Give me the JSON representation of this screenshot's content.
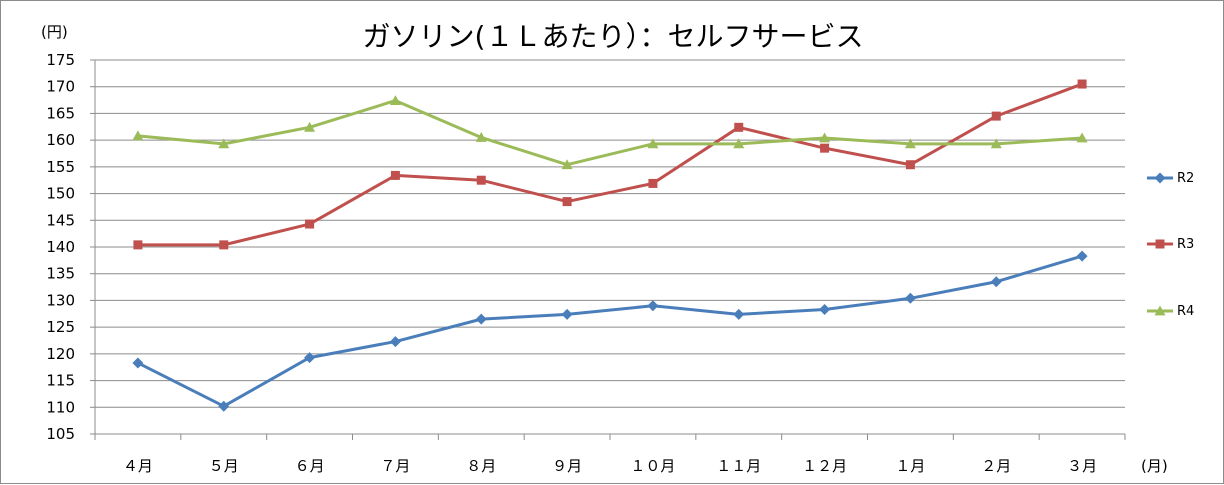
{
  "chart_data": {
    "type": "line",
    "title": "ガソリン(１Ｌあたり）：セルフサービス",
    "ylabel": "(円)",
    "xlabel": "(月)",
    "ylim": [
      105,
      175
    ],
    "ystep": 5,
    "categories": [
      "４月",
      "５月",
      "６月",
      "７月",
      "８月",
      "９月",
      "１０月",
      "１１月",
      "１２月",
      "１月",
      "２月",
      "３月"
    ],
    "grid": true,
    "legend_position": "right",
    "series": [
      {
        "name": "R2",
        "color": "#4a7ebb",
        "marker": "diamond",
        "values": [
          118.3,
          110.2,
          119.3,
          122.3,
          126.5,
          127.4,
          129.0,
          127.4,
          128.3,
          130.4,
          133.5,
          138.3
        ]
      },
      {
        "name": "R3",
        "color": "#c0504d",
        "marker": "square",
        "values": [
          140.4,
          140.4,
          144.3,
          153.4,
          152.5,
          148.5,
          151.9,
          162.4,
          158.5,
          155.4,
          164.5,
          170.5
        ]
      },
      {
        "name": "R4",
        "color": "#9bbb59",
        "marker": "triangle",
        "values": [
          160.8,
          159.3,
          162.4,
          167.4,
          160.5,
          155.4,
          159.3,
          159.3,
          160.4,
          159.3,
          159.3,
          160.4
        ]
      }
    ]
  }
}
